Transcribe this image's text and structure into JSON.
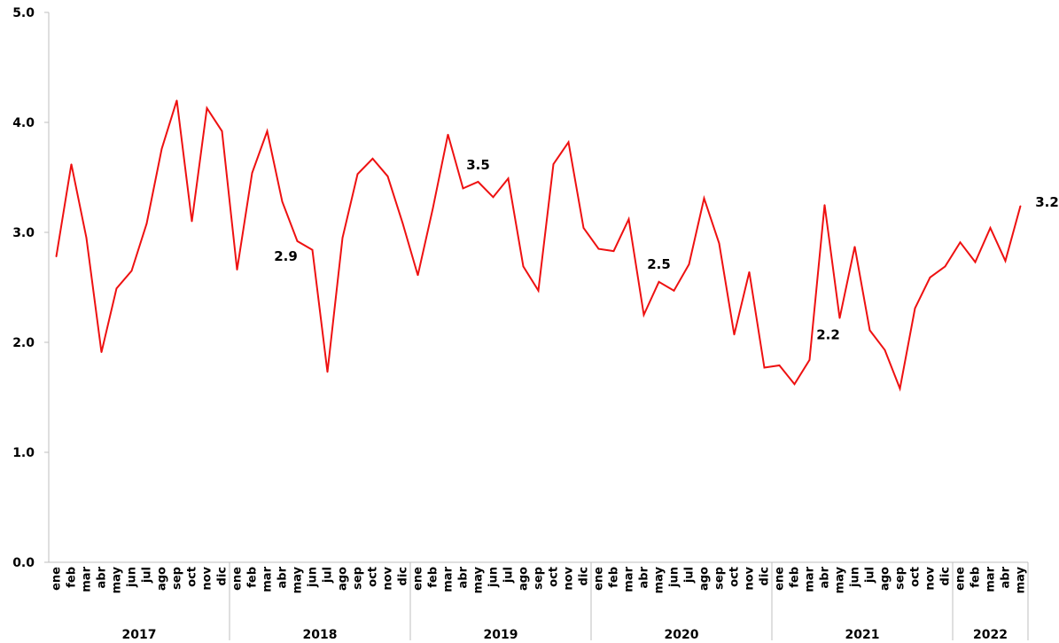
{
  "chart_data": {
    "type": "line",
    "title": "",
    "xlabel": "",
    "ylabel": "",
    "ylim": [
      0,
      5
    ],
    "yticks": [
      "0.0",
      "1.0",
      "2.0",
      "3.0",
      "4.0",
      "5.0"
    ],
    "grid": false,
    "legend": "none",
    "line_color": "#ee1111",
    "years": [
      {
        "label": "2017",
        "months": [
          "ene",
          "feb",
          "mar",
          "abr",
          "may",
          "jun",
          "jul",
          "ago",
          "sep",
          "oct",
          "nov",
          "dic"
        ]
      },
      {
        "label": "2018",
        "months": [
          "ene",
          "feb",
          "mar",
          "abr",
          "may",
          "jun",
          "jul",
          "ago",
          "sep",
          "oct",
          "nov",
          "dic"
        ]
      },
      {
        "label": "2019",
        "months": [
          "ene",
          "feb",
          "mar",
          "abr",
          "may",
          "jun",
          "jul",
          "ago",
          "sep",
          "oct",
          "nov",
          "dic"
        ]
      },
      {
        "label": "2020",
        "months": [
          "ene",
          "feb",
          "mar",
          "abr",
          "may",
          "jun",
          "jul",
          "ago",
          "sep",
          "oct",
          "nov",
          "dic"
        ]
      },
      {
        "label": "2021",
        "months": [
          "ene",
          "feb",
          "mar",
          "abr",
          "may",
          "jun",
          "jul",
          "ago",
          "sep",
          "oct",
          "nov",
          "dic"
        ]
      },
      {
        "label": "2022",
        "months": [
          "ene",
          "feb",
          "mar",
          "abr",
          "may"
        ]
      }
    ],
    "series": [
      {
        "values": [
          2.78,
          3.62,
          2.95,
          1.91,
          2.49,
          2.65,
          3.08,
          3.76,
          4.2,
          3.1,
          4.13,
          3.92,
          2.66,
          3.54,
          3.92,
          3.28,
          2.92,
          2.84,
          1.73,
          2.95,
          3.53,
          3.67,
          3.51,
          3.08,
          2.61,
          3.22,
          3.89,
          3.4,
          3.46,
          3.32,
          3.49,
          2.69,
          2.47,
          3.62,
          3.82,
          3.04,
          2.85,
          2.83,
          3.12,
          2.25,
          2.55,
          2.47,
          2.71,
          3.31,
          2.9,
          2.07,
          2.64,
          1.77,
          1.79,
          1.62,
          1.84,
          3.25,
          2.22,
          2.87,
          2.11,
          1.93,
          1.58,
          2.31,
          2.59,
          2.69,
          2.91,
          2.73,
          3.04,
          2.74,
          3.24
        ]
      }
    ],
    "annotations": [
      {
        "index": 16,
        "text": "2.9"
      },
      {
        "index": 28,
        "text": "3.5"
      },
      {
        "index": 40,
        "text": "2.5"
      },
      {
        "index": 52,
        "text": "2.2"
      },
      {
        "index": 64,
        "text": "3.2"
      }
    ]
  }
}
